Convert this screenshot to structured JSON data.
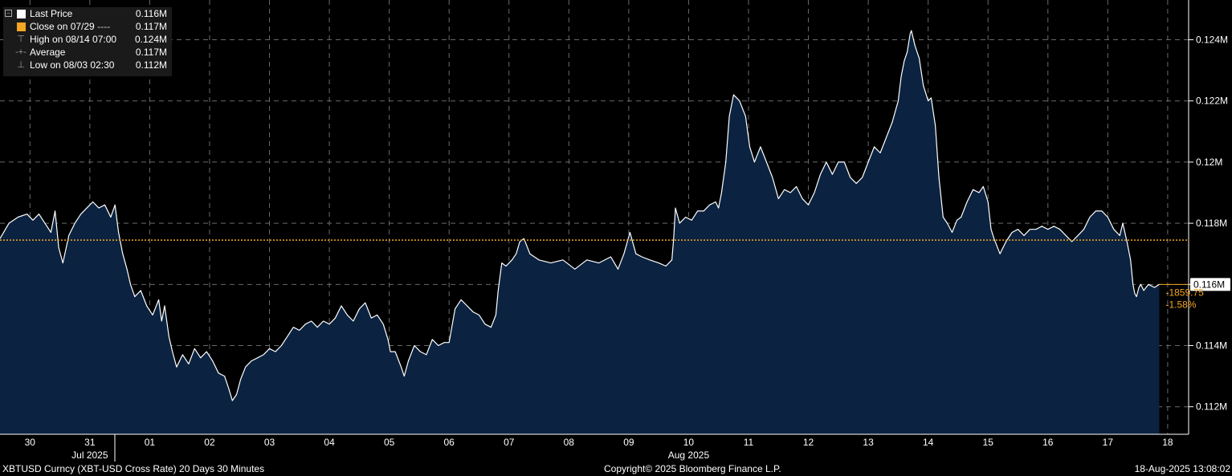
{
  "legend": {
    "items": [
      {
        "label": "Last Price",
        "value": "0.116M",
        "color": "#ffffff",
        "kind": "square"
      },
      {
        "label": "Close on 07/29",
        "value": "0.117M",
        "color": "#f5a623",
        "kind": "square",
        "line": "----"
      },
      {
        "label": "High on 08/14 07:00",
        "value": "0.124M",
        "kind": "high-icon"
      },
      {
        "label": "Average",
        "value": "0.117M",
        "kind": "average-icon"
      },
      {
        "label": "Low on 08/03 02:30",
        "value": "0.112M",
        "kind": "low-icon"
      }
    ]
  },
  "last_tag": "0.116M",
  "change": {
    "abs": "-1859.75",
    "pct": "-1.58%"
  },
  "footer": {
    "left": "XBTUSD Curncy (XBT-USD Cross Rate) 20 Days 30 Minutes",
    "center": "Copyright© 2025 Bloomberg Finance L.P.",
    "right": "18-Aug-2025 13:08:02"
  },
  "colors": {
    "fill": "#0b2340",
    "line": "#ffffff",
    "ref": "#f5a623",
    "grid": "#6a6a6a",
    "axis": "#ffffff"
  },
  "chart_data": {
    "type": "area",
    "y_ticks": [
      0.112,
      0.114,
      0.116,
      0.118,
      0.12,
      0.122,
      0.124
    ],
    "y_tick_labels": [
      "0.112M",
      "0.114M",
      "0.116M",
      "0.118M",
      "0.12M",
      "0.122M",
      "0.124M"
    ],
    "ylim": [
      0.1111,
      0.1253
    ],
    "xlim": [
      -0.5,
      19.35
    ],
    "x_ticks": [
      {
        "pos": 0,
        "label": "30"
      },
      {
        "pos": 1,
        "label": "31"
      },
      {
        "pos": 2,
        "label": "01"
      },
      {
        "pos": 3,
        "label": "02"
      },
      {
        "pos": 4,
        "label": "03"
      },
      {
        "pos": 5,
        "label": "04"
      },
      {
        "pos": 6,
        "label": "05"
      },
      {
        "pos": 7,
        "label": "06"
      },
      {
        "pos": 8,
        "label": "07"
      },
      {
        "pos": 9,
        "label": "08"
      },
      {
        "pos": 10,
        "label": "09"
      },
      {
        "pos": 11,
        "label": "10"
      },
      {
        "pos": 12,
        "label": "11"
      },
      {
        "pos": 13,
        "label": "12"
      },
      {
        "pos": 14,
        "label": "13"
      },
      {
        "pos": 15,
        "label": "14"
      },
      {
        "pos": 16,
        "label": "15"
      },
      {
        "pos": 17,
        "label": "16"
      },
      {
        "pos": 18,
        "label": "17"
      },
      {
        "pos": 19,
        "label": "18"
      }
    ],
    "month_labels": [
      {
        "pos": 1,
        "label": "Jul 2025"
      },
      {
        "pos": 11,
        "label": "Aug 2025"
      }
    ],
    "reference_line": 0.11745,
    "last_value": 0.116,
    "series": [
      {
        "name": "Last Price",
        "points": [
          [
            -0.5,
            0.1175
          ],
          [
            -0.35,
            0.118
          ],
          [
            -0.2,
            0.1182
          ],
          [
            -0.05,
            0.1183
          ],
          [
            0.05,
            0.1181
          ],
          [
            0.15,
            0.1183
          ],
          [
            0.25,
            0.118
          ],
          [
            0.35,
            0.1177
          ],
          [
            0.42,
            0.1184
          ],
          [
            0.48,
            0.1172
          ],
          [
            0.55,
            0.1167
          ],
          [
            0.65,
            0.1176
          ],
          [
            0.75,
            0.118
          ],
          [
            0.85,
            0.1183
          ],
          [
            0.95,
            0.1185
          ],
          [
            1.05,
            0.1187
          ],
          [
            1.15,
            0.1185
          ],
          [
            1.25,
            0.1186
          ],
          [
            1.35,
            0.1182
          ],
          [
            1.42,
            0.1186
          ],
          [
            1.48,
            0.1177
          ],
          [
            1.55,
            0.117
          ],
          [
            1.62,
            0.1165
          ],
          [
            1.68,
            0.116
          ],
          [
            1.75,
            0.1156
          ],
          [
            1.85,
            0.1158
          ],
          [
            1.95,
            0.1153
          ],
          [
            2.05,
            0.115
          ],
          [
            2.15,
            0.1155
          ],
          [
            2.2,
            0.1148
          ],
          [
            2.25,
            0.1153
          ],
          [
            2.32,
            0.1143
          ],
          [
            2.38,
            0.1138
          ],
          [
            2.45,
            0.1133
          ],
          [
            2.55,
            0.1137
          ],
          [
            2.65,
            0.1134
          ],
          [
            2.75,
            0.1139
          ],
          [
            2.85,
            0.1136
          ],
          [
            2.95,
            0.1138
          ],
          [
            3.05,
            0.1135
          ],
          [
            3.15,
            0.1131
          ],
          [
            3.25,
            0.113
          ],
          [
            3.32,
            0.1126
          ],
          [
            3.38,
            0.1122
          ],
          [
            3.45,
            0.1124
          ],
          [
            3.52,
            0.1129
          ],
          [
            3.6,
            0.1133
          ],
          [
            3.7,
            0.1135
          ],
          [
            3.8,
            0.1136
          ],
          [
            3.9,
            0.1137
          ],
          [
            4.0,
            0.1139
          ],
          [
            4.1,
            0.1138
          ],
          [
            4.2,
            0.114
          ],
          [
            4.3,
            0.1143
          ],
          [
            4.4,
            0.1146
          ],
          [
            4.5,
            0.1145
          ],
          [
            4.6,
            0.1147
          ],
          [
            4.7,
            0.1148
          ],
          [
            4.8,
            0.1146
          ],
          [
            4.9,
            0.1148
          ],
          [
            5.0,
            0.1147
          ],
          [
            5.1,
            0.1149
          ],
          [
            5.2,
            0.1153
          ],
          [
            5.3,
            0.115
          ],
          [
            5.4,
            0.1148
          ],
          [
            5.5,
            0.1152
          ],
          [
            5.6,
            0.1154
          ],
          [
            5.7,
            0.1149
          ],
          [
            5.8,
            0.115
          ],
          [
            5.9,
            0.1147
          ],
          [
            5.98,
            0.1142
          ],
          [
            6.02,
            0.1138
          ],
          [
            6.1,
            0.1138
          ],
          [
            6.2,
            0.1133
          ],
          [
            6.25,
            0.113
          ],
          [
            6.32,
            0.1135
          ],
          [
            6.42,
            0.114
          ],
          [
            6.52,
            0.1138
          ],
          [
            6.62,
            0.1137
          ],
          [
            6.72,
            0.1142
          ],
          [
            6.82,
            0.114
          ],
          [
            6.92,
            0.1141
          ],
          [
            7.0,
            0.1141
          ],
          [
            7.1,
            0.1152
          ],
          [
            7.2,
            0.1155
          ],
          [
            7.3,
            0.1153
          ],
          [
            7.4,
            0.1151
          ],
          [
            7.5,
            0.115
          ],
          [
            7.6,
            0.1147
          ],
          [
            7.7,
            0.1146
          ],
          [
            7.78,
            0.115
          ],
          [
            7.82,
            0.1158
          ],
          [
            7.88,
            0.1167
          ],
          [
            7.95,
            0.1166
          ],
          [
            8.05,
            0.1168
          ],
          [
            8.12,
            0.117
          ],
          [
            8.18,
            0.1174
          ],
          [
            8.25,
            0.1175
          ],
          [
            8.35,
            0.117
          ],
          [
            8.5,
            0.1168
          ],
          [
            8.7,
            0.1167
          ],
          [
            8.9,
            0.1168
          ],
          [
            9.1,
            0.1165
          ],
          [
            9.3,
            0.1168
          ],
          [
            9.5,
            0.1167
          ],
          [
            9.7,
            0.1169
          ],
          [
            9.82,
            0.1165
          ],
          [
            9.92,
            0.117
          ],
          [
            10.02,
            0.1177
          ],
          [
            10.12,
            0.117
          ],
          [
            10.22,
            0.1169
          ],
          [
            10.35,
            0.1168
          ],
          [
            10.5,
            0.1167
          ],
          [
            10.62,
            0.1166
          ],
          [
            10.72,
            0.1168
          ],
          [
            10.75,
            0.1175
          ],
          [
            10.78,
            0.1185
          ],
          [
            10.85,
            0.118
          ],
          [
            10.95,
            0.1182
          ],
          [
            11.05,
            0.1181
          ],
          [
            11.15,
            0.1184
          ],
          [
            11.25,
            0.1184
          ],
          [
            11.35,
            0.1186
          ],
          [
            11.45,
            0.1187
          ],
          [
            11.5,
            0.1185
          ],
          [
            11.55,
            0.119
          ],
          [
            11.62,
            0.12
          ],
          [
            11.68,
            0.1215
          ],
          [
            11.75,
            0.1222
          ],
          [
            11.85,
            0.122
          ],
          [
            11.95,
            0.1215
          ],
          [
            12.02,
            0.1205
          ],
          [
            12.1,
            0.12
          ],
          [
            12.2,
            0.1205
          ],
          [
            12.3,
            0.12
          ],
          [
            12.4,
            0.1195
          ],
          [
            12.5,
            0.1188
          ],
          [
            12.6,
            0.1191
          ],
          [
            12.7,
            0.119
          ],
          [
            12.8,
            0.1192
          ],
          [
            12.9,
            0.1188
          ],
          [
            13.0,
            0.1186
          ],
          [
            13.1,
            0.119
          ],
          [
            13.2,
            0.1196
          ],
          [
            13.3,
            0.12
          ],
          [
            13.4,
            0.1196
          ],
          [
            13.5,
            0.12
          ],
          [
            13.6,
            0.12
          ],
          [
            13.7,
            0.1195
          ],
          [
            13.8,
            0.1193
          ],
          [
            13.9,
            0.1195
          ],
          [
            14.0,
            0.12
          ],
          [
            14.1,
            0.1205
          ],
          [
            14.2,
            0.1203
          ],
          [
            14.3,
            0.1208
          ],
          [
            14.4,
            0.1213
          ],
          [
            14.5,
            0.122
          ],
          [
            14.55,
            0.1228
          ],
          [
            14.6,
            0.1233
          ],
          [
            14.65,
            0.1236
          ],
          [
            14.7,
            0.1242
          ],
          [
            14.72,
            0.1243
          ],
          [
            14.78,
            0.1238
          ],
          [
            14.85,
            0.1234
          ],
          [
            14.92,
            0.1225
          ],
          [
            15.0,
            0.122
          ],
          [
            15.05,
            0.1221
          ],
          [
            15.12,
            0.1212
          ],
          [
            15.18,
            0.1195
          ],
          [
            15.25,
            0.1182
          ],
          [
            15.32,
            0.118
          ],
          [
            15.4,
            0.1177
          ],
          [
            15.48,
            0.1181
          ],
          [
            15.55,
            0.1182
          ],
          [
            15.65,
            0.1187
          ],
          [
            15.75,
            0.1191
          ],
          [
            15.85,
            0.119
          ],
          [
            15.92,
            0.1192
          ],
          [
            16.0,
            0.1187
          ],
          [
            16.05,
            0.1178
          ],
          [
            16.1,
            0.1175
          ],
          [
            16.2,
            0.117
          ],
          [
            16.3,
            0.1174
          ],
          [
            16.4,
            0.1177
          ],
          [
            16.5,
            0.1178
          ],
          [
            16.6,
            0.1176
          ],
          [
            16.7,
            0.1178
          ],
          [
            16.8,
            0.1178
          ],
          [
            16.9,
            0.1179
          ],
          [
            17.0,
            0.1178
          ],
          [
            17.1,
            0.1179
          ],
          [
            17.2,
            0.1178
          ],
          [
            17.3,
            0.1176
          ],
          [
            17.4,
            0.1174
          ],
          [
            17.5,
            0.1176
          ],
          [
            17.6,
            0.1178
          ],
          [
            17.7,
            0.1182
          ],
          [
            17.8,
            0.1184
          ],
          [
            17.9,
            0.1184
          ],
          [
            18.0,
            0.1182
          ],
          [
            18.1,
            0.1178
          ],
          [
            18.2,
            0.1176
          ],
          [
            18.25,
            0.118
          ],
          [
            18.32,
            0.1174
          ],
          [
            18.38,
            0.1168
          ],
          [
            18.42,
            0.116
          ],
          [
            18.45,
            0.1157
          ],
          [
            18.48,
            0.1156
          ],
          [
            18.52,
            0.1159
          ],
          [
            18.55,
            0.116
          ],
          [
            18.6,
            0.1158
          ],
          [
            18.68,
            0.116
          ],
          [
            18.78,
            0.1159
          ],
          [
            18.86,
            0.116
          ]
        ]
      }
    ]
  }
}
